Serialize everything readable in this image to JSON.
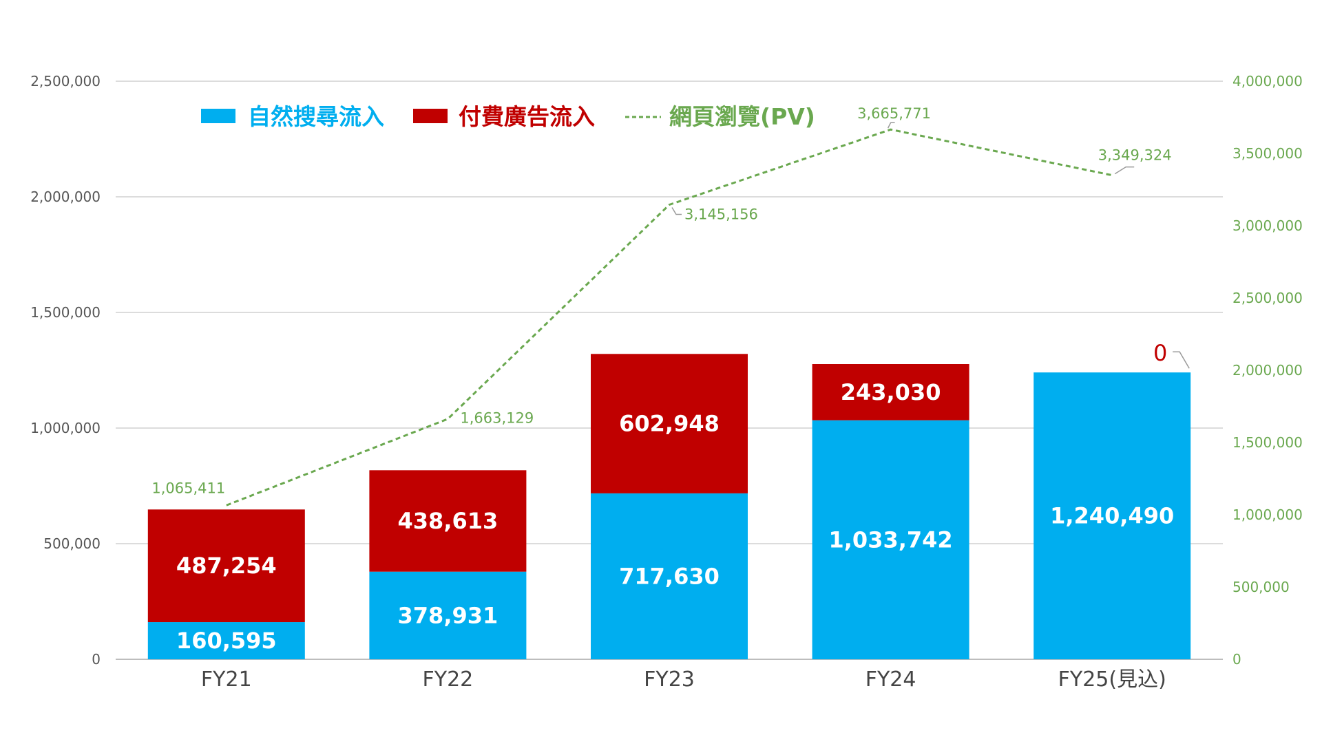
{
  "chart_data": {
    "type": "bar",
    "stacked": true,
    "categories": [
      "FY21",
      "FY22",
      "FY23",
      "FY24",
      "FY25(見込)"
    ],
    "series": [
      {
        "name": "自然搜尋流入",
        "type": "bar",
        "axis": "left",
        "color": "#00aeef",
        "values": [
          160595,
          378931,
          717630,
          1033742,
          1240490
        ],
        "labels": [
          "160,595",
          "378,931",
          "717,630",
          "1,033,742",
          "1,240,490"
        ]
      },
      {
        "name": "付費廣告流入",
        "type": "bar",
        "axis": "left",
        "color": "#c00000",
        "values": [
          487254,
          438613,
          602948,
          243030,
          0
        ],
        "labels": [
          "487,254",
          "438,613",
          "602,948",
          "243,030",
          "0"
        ]
      },
      {
        "name": "網頁瀏覽(PV)",
        "type": "line",
        "style": "dashed",
        "axis": "right",
        "color": "#6aa84f",
        "values": [
          1065411,
          1663129,
          3145156,
          3665771,
          3349324
        ],
        "labels": [
          "1,065,411",
          "1,663,129",
          "3,145,156",
          "3,665,771",
          "3,349,324"
        ]
      }
    ],
    "y_left": {
      "range": [
        0,
        2500000
      ],
      "ticks": [
        0,
        500000,
        1000000,
        1500000,
        2000000,
        2500000
      ],
      "tick_labels": [
        "0",
        "500,000",
        "1,000,000",
        "1,500,000",
        "2,000,000",
        "2,500,000"
      ]
    },
    "y_right": {
      "range": [
        0,
        4000000
      ],
      "ticks": [
        0,
        500000,
        1000000,
        1500000,
        2000000,
        2500000,
        3000000,
        3500000,
        4000000
      ],
      "tick_labels": [
        "0",
        "500,000",
        "1,000,000",
        "1,500,000",
        "2,000,000",
        "2,500,000",
        "3,000,000",
        "3,500,000",
        "4,000,000"
      ]
    },
    "grid": true,
    "legend": {
      "position": "top-left",
      "entries": [
        "自然搜尋流入",
        "付費廣告流入",
        "網頁瀏覽(PV)"
      ]
    }
  }
}
